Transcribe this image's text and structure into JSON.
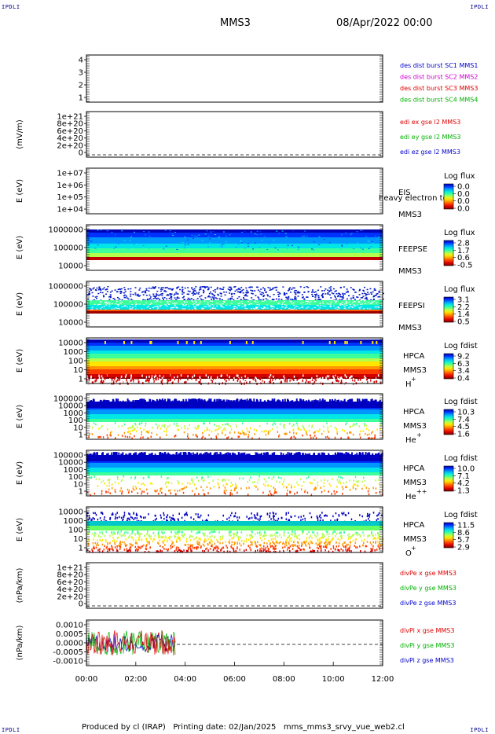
{
  "corners": {
    "tl": "IPDLI",
    "tr": "IPDLI",
    "bl": "IPDLI",
    "br": "IPDLI"
  },
  "header": {
    "spacecraft": "MMS3",
    "date": "08/Apr/2022 00:00"
  },
  "footer": {
    "text": "Produced by cl (IRAP)   Printing date: 02/Jan/2025   mms_mms3_srvy_vue_web2.cl"
  },
  "x_axis": {
    "ticks": [
      "00:00",
      "02:00",
      "04:00",
      "06:00",
      "08:00",
      "10:00",
      "12:00"
    ]
  },
  "colors": {
    "blue": "#0000cc",
    "magenta": "#d000d0",
    "red": "#e00000",
    "green": "#00b000"
  },
  "chart_data": [
    {
      "type": "line",
      "panel": "fpi-burst",
      "ylim": [
        0.5,
        4.5
      ],
      "ticks": [
        "4",
        "3",
        "2",
        "1"
      ],
      "ylabel": "",
      "series": [
        {
          "name": "des dist burst SC1 MMS1",
          "color": "#0000cc",
          "values": []
        },
        {
          "name": "des dist burst SC2 MMS2",
          "color": "#d000d0",
          "values": []
        },
        {
          "name": "des dist burst SC3 MMS3",
          "color": "#e00000",
          "values": []
        },
        {
          "name": "des dist burst SC4 MMS4",
          "color": "#00b000",
          "values": []
        }
      ]
    },
    {
      "type": "line",
      "panel": "edi-e",
      "ticks": [
        "1e+21",
        "8e+20",
        "6e+20",
        "4e+20",
        "2e+20",
        "0"
      ],
      "ylabel": "(mV/m)",
      "series": [
        {
          "name": "edi ex gse l2 MMS3",
          "color": "#e00000",
          "values": []
        },
        {
          "name": "edi ey gse l2 MMS3",
          "color": "#00b000",
          "values": []
        },
        {
          "name": "edi ez gse l2 MMS3",
          "color": "#0000cc",
          "values": []
        }
      ]
    },
    {
      "type": "heatmap",
      "panel": "eis",
      "ticks": [
        "1e+07",
        "1e+06",
        "1e+05",
        "1e+04"
      ],
      "ylabel": "E (eV)",
      "instrument": "EIS",
      "spacecraft": "MMS3",
      "note": "heavy electron to",
      "cbar_label": "Log flux",
      "cbar_ticks": [
        "0.0",
        "0.0",
        "0.0",
        "0.0"
      ]
    },
    {
      "type": "heatmap",
      "panel": "feepse",
      "ticks": [
        "1000000",
        "100000",
        "10000"
      ],
      "ylabel": "E (eV)",
      "instrument": "FEEPSE",
      "spacecraft": "MMS3",
      "cbar_label": "Log flux",
      "cbar_ticks": [
        "2.8",
        "1.7",
        "0.6",
        "-0.5"
      ]
    },
    {
      "type": "heatmap",
      "panel": "feepsi",
      "ticks": [
        "1000000",
        "100000",
        "10000"
      ],
      "ylabel": "E (eV)",
      "instrument": "FEEPSI",
      "spacecraft": "MMS3",
      "cbar_label": "Log flux",
      "cbar_ticks": [
        "3.1",
        "2.2",
        "1.4",
        "0.5"
      ]
    },
    {
      "type": "heatmap",
      "panel": "hpca-h",
      "ticks": [
        "10000",
        "1000",
        "100",
        "10",
        "1"
      ],
      "ylabel": "E (eV)",
      "instrument": "HPCA",
      "spacecraft": "MMS3",
      "species": "H",
      "charge": "+",
      "cbar_label": "Log fdist",
      "cbar_ticks": [
        "9.2",
        "6.3",
        "3.4",
        "0.4"
      ]
    },
    {
      "type": "heatmap",
      "panel": "hpca-he1",
      "ticks": [
        "100000",
        "10000",
        "1000",
        "100",
        "10",
        "1"
      ],
      "ylabel": "E (eV)",
      "instrument": "HPCA",
      "spacecraft": "MMS3",
      "species": "He",
      "charge": "+",
      "cbar_label": "Log fdist",
      "cbar_ticks": [
        "10.3",
        "7.4",
        "4.5",
        "1.6"
      ]
    },
    {
      "type": "heatmap",
      "panel": "hpca-he2",
      "ticks": [
        "100000",
        "10000",
        "1000",
        "100",
        "10",
        "1"
      ],
      "ylabel": "E (eV)",
      "instrument": "HPCA",
      "spacecraft": "MMS3",
      "species": "He",
      "charge": "++",
      "cbar_label": "Log fdist",
      "cbar_ticks": [
        "10.0",
        "7.1",
        "4.2",
        "1.3"
      ]
    },
    {
      "type": "heatmap",
      "panel": "hpca-o",
      "ticks": [
        "10000",
        "1000",
        "100",
        "10",
        "1"
      ],
      "ylabel": "E (eV)",
      "instrument": "HPCA",
      "spacecraft": "MMS3",
      "species": "O",
      "charge": "+",
      "cbar_label": "Log fdist",
      "cbar_ticks": [
        "11.5",
        "8.6",
        "5.7",
        "2.9"
      ]
    },
    {
      "type": "line",
      "panel": "divpe",
      "ticks": [
        "1e+21",
        "8e+20",
        "6e+20",
        "4e+20",
        "2e+20",
        "0"
      ],
      "ylabel": "(nPa/km)",
      "series": [
        {
          "name": "divPe x gse MMS3",
          "color": "#e00000",
          "values": []
        },
        {
          "name": "divPe y gse MMS3",
          "color": "#00b000",
          "values": []
        },
        {
          "name": "divPe z gse MMS3",
          "color": "#0000cc",
          "values": []
        }
      ]
    },
    {
      "type": "line",
      "panel": "divpi",
      "ylim": [
        -0.001,
        0.001
      ],
      "ticks": [
        "0.0010",
        "0.0005",
        "0.0000",
        "-0.0005",
        "-0.0010"
      ],
      "ylabel": "(nPa/km)",
      "data_range_hours": [
        0,
        3.6
      ],
      "series": [
        {
          "name": "divPi x gse MMS3",
          "color": "#e00000",
          "values": []
        },
        {
          "name": "divPi y gse MMS3",
          "color": "#00b000",
          "values": []
        },
        {
          "name": "divPi z gse MMS3",
          "color": "#0000cc",
          "values": []
        }
      ]
    }
  ]
}
